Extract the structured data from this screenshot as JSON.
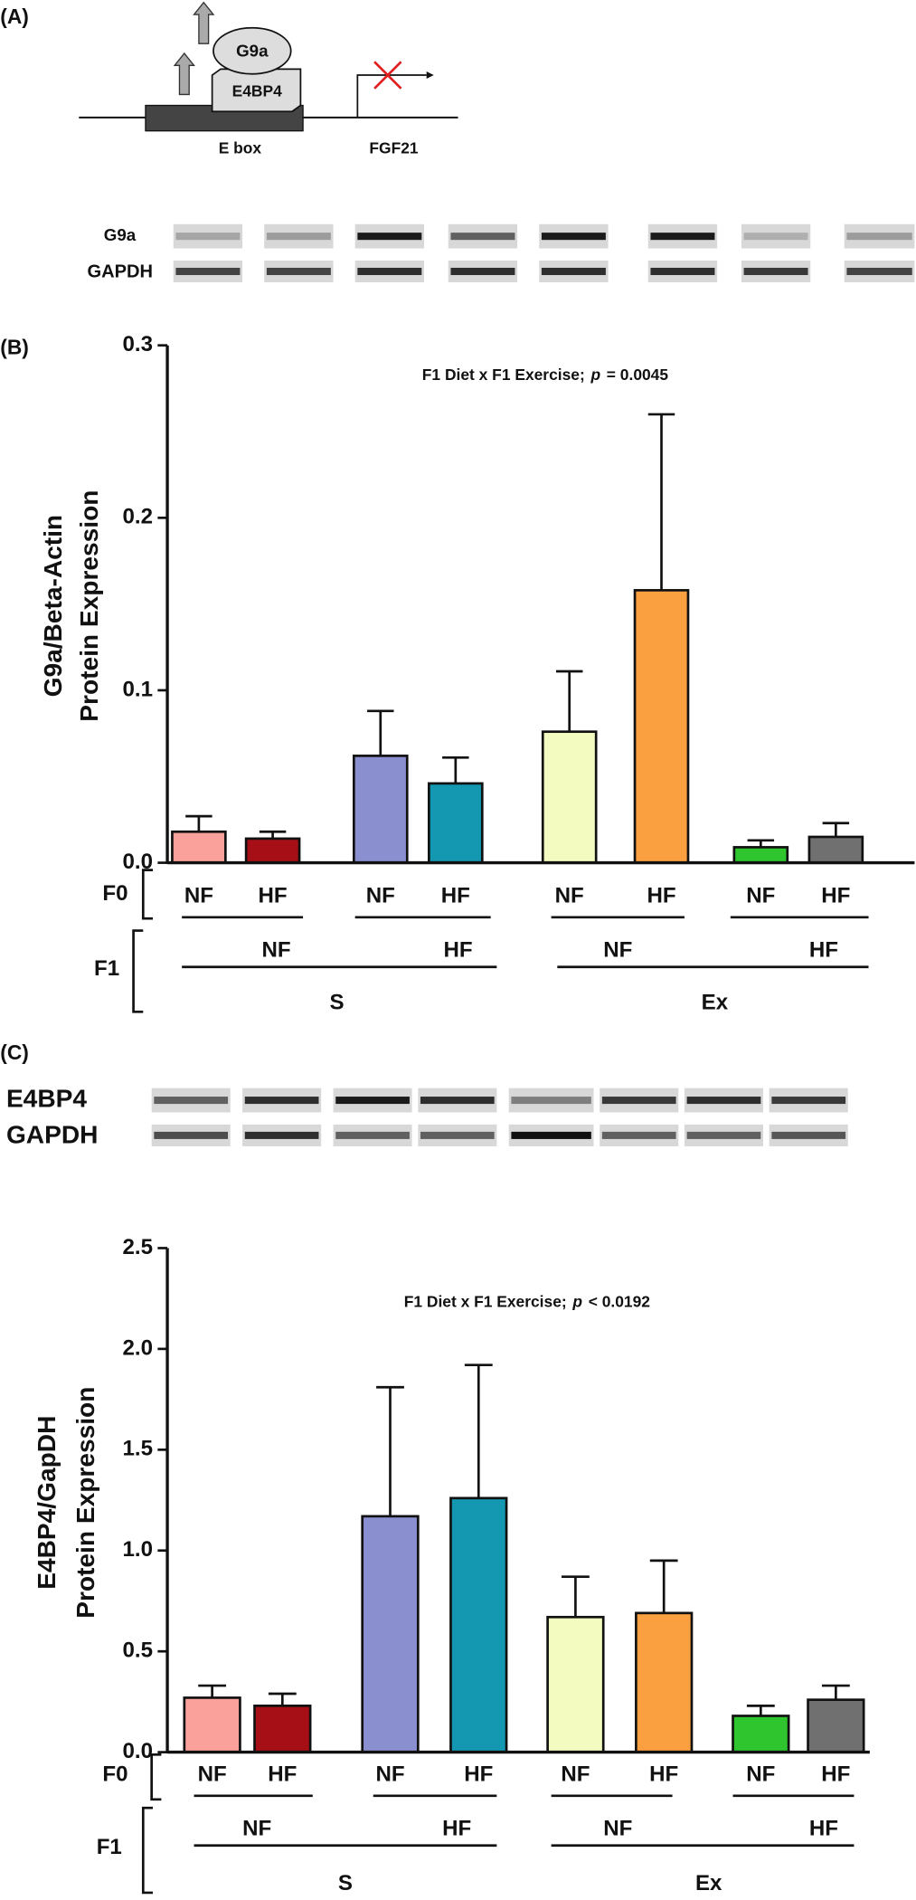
{
  "panels": {
    "a": "(A)",
    "b": "(B)",
    "c": "(C)"
  },
  "diagram": {
    "g9a": "G9a",
    "e4bp4": "E4BP4",
    "ebox": "E box",
    "fgf21": "FGF21"
  },
  "blot_a": {
    "rows": [
      "G9a",
      "GAPDH"
    ]
  },
  "blot_c": {
    "rows": [
      "E4BP4",
      "GAPDH"
    ]
  },
  "chart_data": [
    {
      "type": "bar",
      "y_label": [
        "G9a/Beta-Actin",
        "Protein Expression"
      ],
      "annotation": {
        "text": "F1 Diet x F1 Exercise;",
        "stat": "p",
        "result": "= 0.0045"
      },
      "categories": [
        "NF",
        "HF",
        "NF",
        "HF",
        "NF",
        "HF",
        "NF",
        "HF"
      ],
      "values": [
        0.018,
        0.014,
        0.062,
        0.046,
        0.076,
        0.158,
        0.009,
        0.015
      ],
      "errors": [
        0.009,
        0.004,
        0.026,
        0.015,
        0.035,
        0.102,
        0.004,
        0.008
      ],
      "colors": [
        "#f9a19a",
        "#a50f15",
        "#8a8fcf",
        "#1497b0",
        "#f3fbc0",
        "#fba040",
        "#2ec52e",
        "#707070"
      ],
      "ylim": [
        0,
        0.3
      ],
      "yticks": [
        {
          "value": 0,
          "label": "0.0"
        },
        0.1,
        0.2,
        0.3
      ],
      "f0_label": "F0",
      "f1_label": "F1",
      "f1_groups": [
        "NF",
        "HF",
        "NF",
        "HF"
      ],
      "exercise_groups": [
        "S",
        "Ex"
      ]
    },
    {
      "type": "bar",
      "y_label": [
        "E4BP4/GapDH",
        "Protein Expression"
      ],
      "annotation": {
        "text": "F1 Diet x F1 Exercise;",
        "stat": "p",
        "result": "< 0.0192"
      },
      "categories": [
        "NF",
        "HF",
        "NF",
        "HF",
        "NF",
        "HF",
        "NF",
        "HF"
      ],
      "values": [
        0.27,
        0.23,
        1.17,
        1.26,
        0.67,
        0.69,
        0.18,
        0.26
      ],
      "errors": [
        0.06,
        0.06,
        0.64,
        0.66,
        0.2,
        0.26,
        0.05,
        0.07
      ],
      "colors": [
        "#f9a19a",
        "#a50f15",
        "#8a8fcf",
        "#1497b0",
        "#f3fbc0",
        "#fba040",
        "#2ec52e",
        "#707070"
      ],
      "ylim": [
        0,
        2.5
      ],
      "yticks": [
        {
          "value": 0,
          "label": "0.0"
        },
        0.5,
        {
          "value": 1,
          "label": "1.0"
        },
        1.5,
        {
          "value": 2,
          "label": "2.0"
        },
        2.5
      ],
      "f0_label": "F0",
      "f1_label": "F1",
      "f1_groups": [
        "NF",
        "HF",
        "NF",
        "HF"
      ],
      "exercise_groups": [
        "S",
        "Ex"
      ]
    }
  ]
}
